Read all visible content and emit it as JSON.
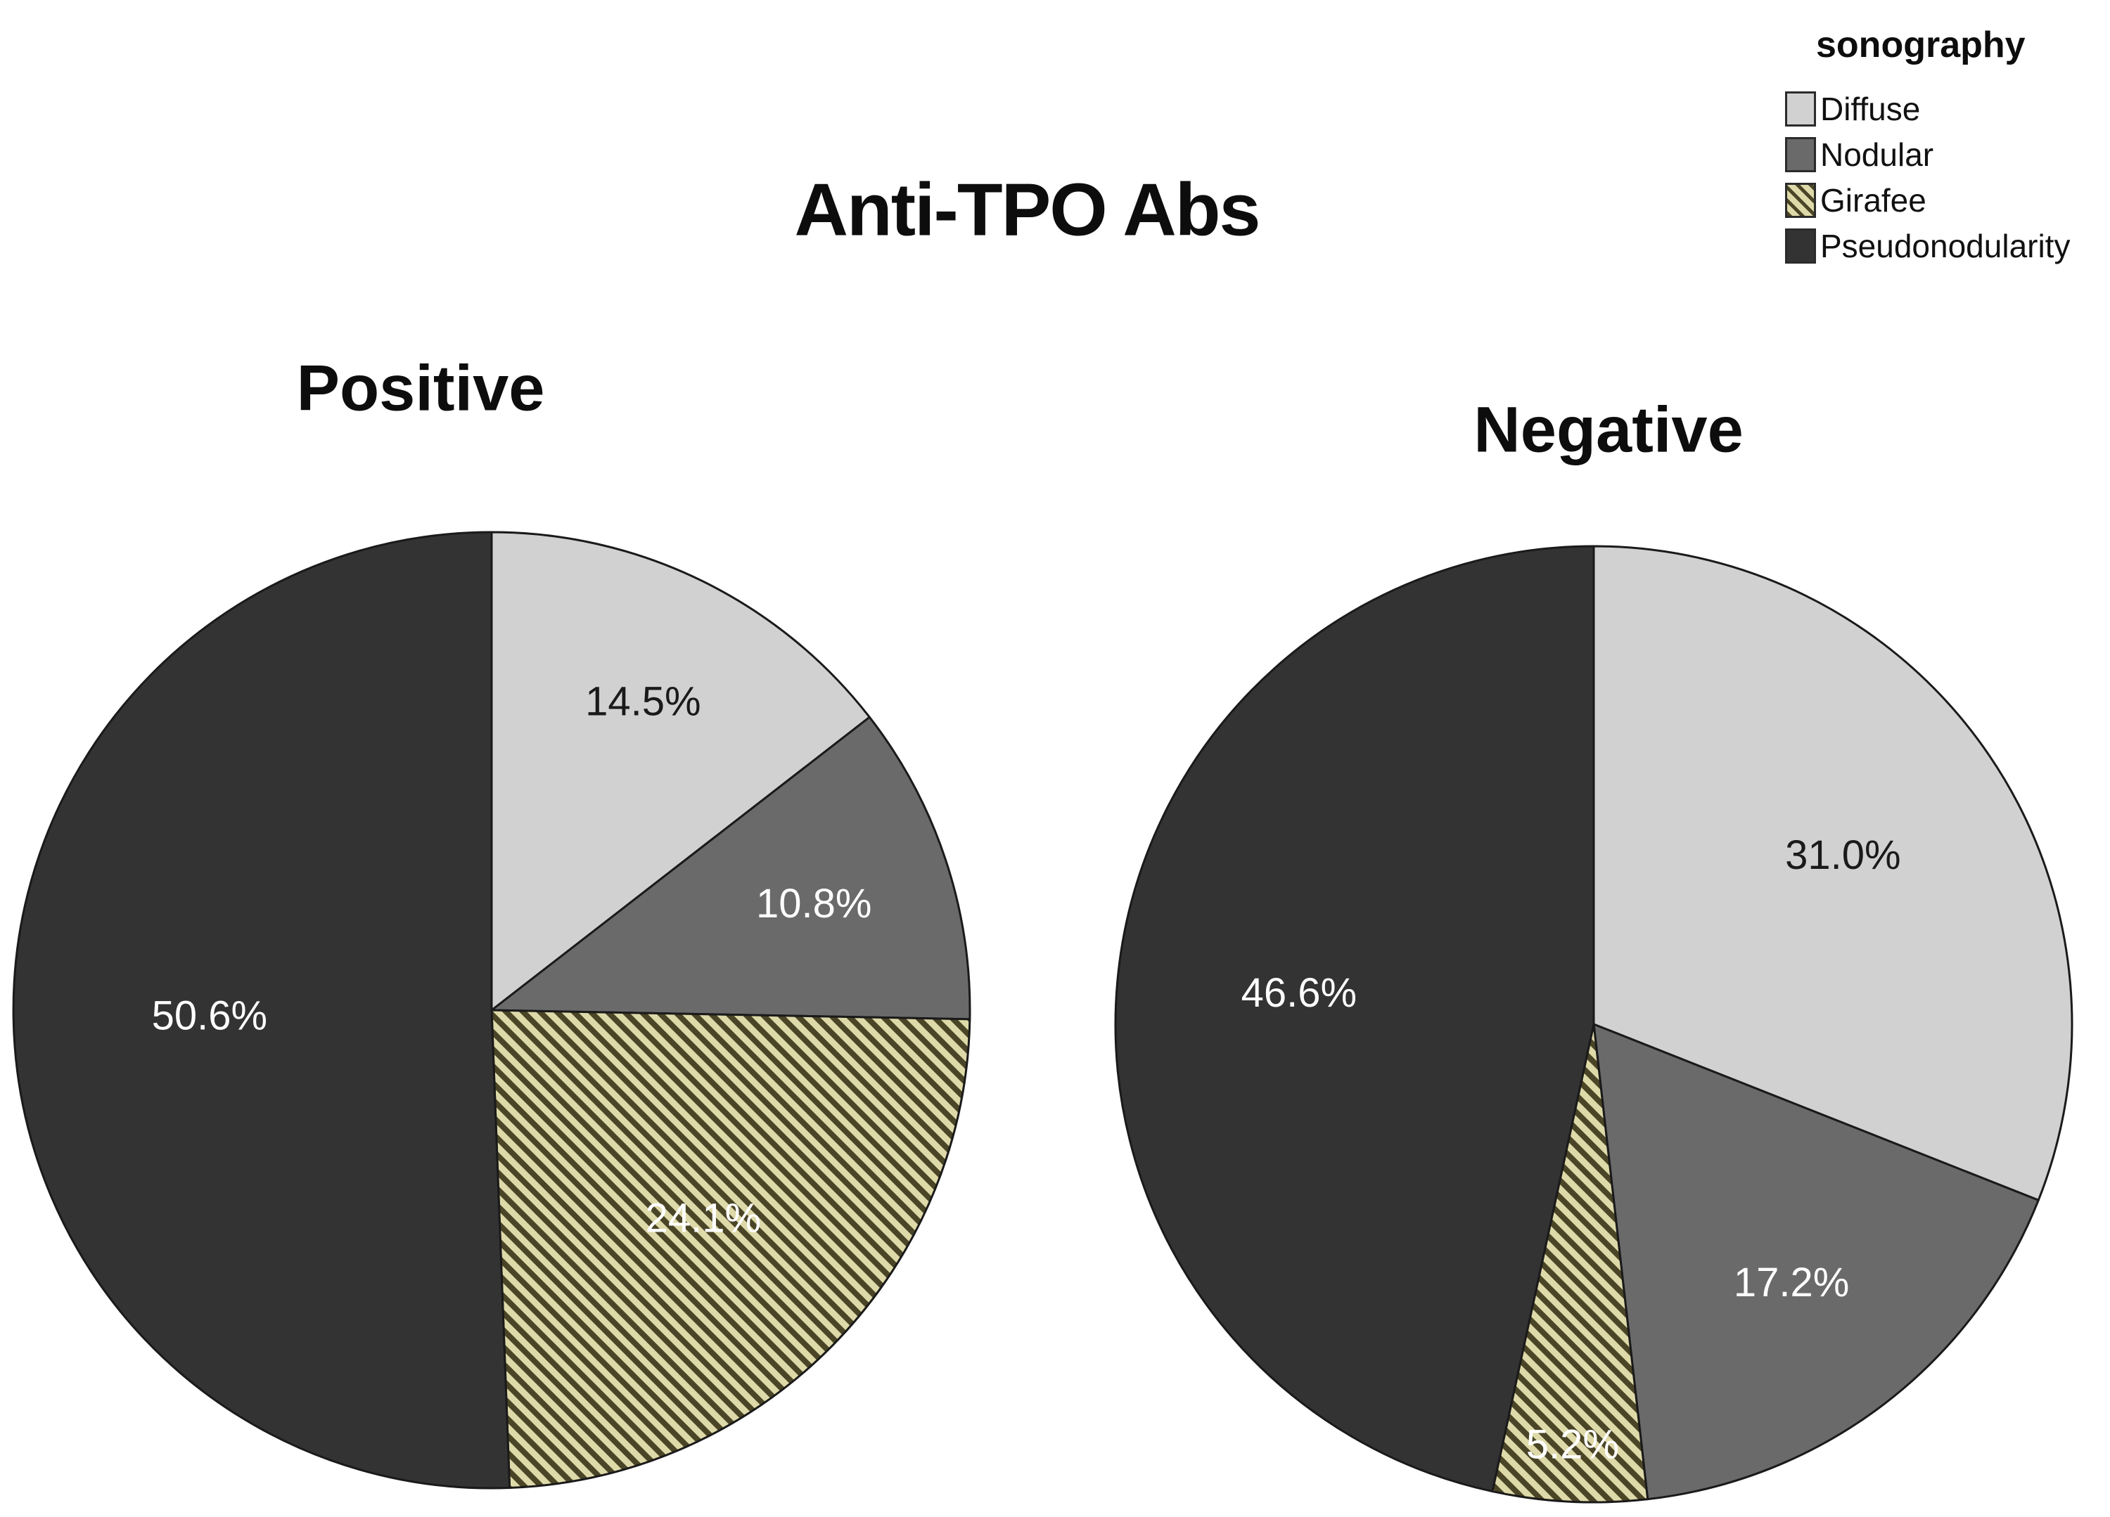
{
  "title": "Anti-TPO Abs",
  "legend": {
    "title": "sonography",
    "position": "top-right",
    "items": [
      {
        "label": "Diffuse",
        "color": "#d1d1d1",
        "pattern": "solid"
      },
      {
        "label": "Nodular",
        "color": "#6a6a6a",
        "pattern": "solid"
      },
      {
        "label": "Girafee",
        "color": "#ded9a8",
        "pattern": "hatch"
      },
      {
        "label": "Pseudonodularity",
        "color": "#333333",
        "pattern": "solid"
      }
    ]
  },
  "style": {
    "background": "#ffffff",
    "slice_outline_color": "#1a1a1a",
    "hatch_light": "#ded9a8",
    "hatch_dark": "#4a4526",
    "label_dark_text": "#1a1a1a",
    "label_light_text": "#ffffff"
  },
  "chart_data": [
    {
      "type": "pie",
      "title": "Positive",
      "categories": [
        "Diffuse",
        "Nodular",
        "Girafee",
        "Pseudonodularity"
      ],
      "values": [
        14.5,
        10.8,
        24.1,
        50.6
      ],
      "labels": [
        "14.5%",
        "10.8%",
        "24.1%",
        "50.6%"
      ],
      "label_colors": [
        "#1a1a1a",
        "#ffffff",
        "#ffffff",
        "#ffffff"
      ],
      "label_radius_fractions": [
        0.72,
        0.71,
        0.62,
        0.59
      ],
      "start_angle_deg": 0,
      "direction": "clockwise",
      "label_position": "inside"
    },
    {
      "type": "pie",
      "title": "Negative",
      "categories": [
        "Diffuse",
        "Nodular",
        "Girafee",
        "Pseudonodularity"
      ],
      "values": [
        31.0,
        17.2,
        5.2,
        46.6
      ],
      "labels": [
        "31.0%",
        "17.2%",
        "5.2%",
        "46.6%"
      ],
      "label_colors": [
        "#1a1a1a",
        "#ffffff",
        "#ffffff",
        "#ffffff"
      ],
      "label_radius_fractions": [
        0.63,
        0.68,
        0.88,
        0.62
      ],
      "start_angle_deg": 0,
      "direction": "clockwise",
      "label_position": "inside"
    }
  ]
}
